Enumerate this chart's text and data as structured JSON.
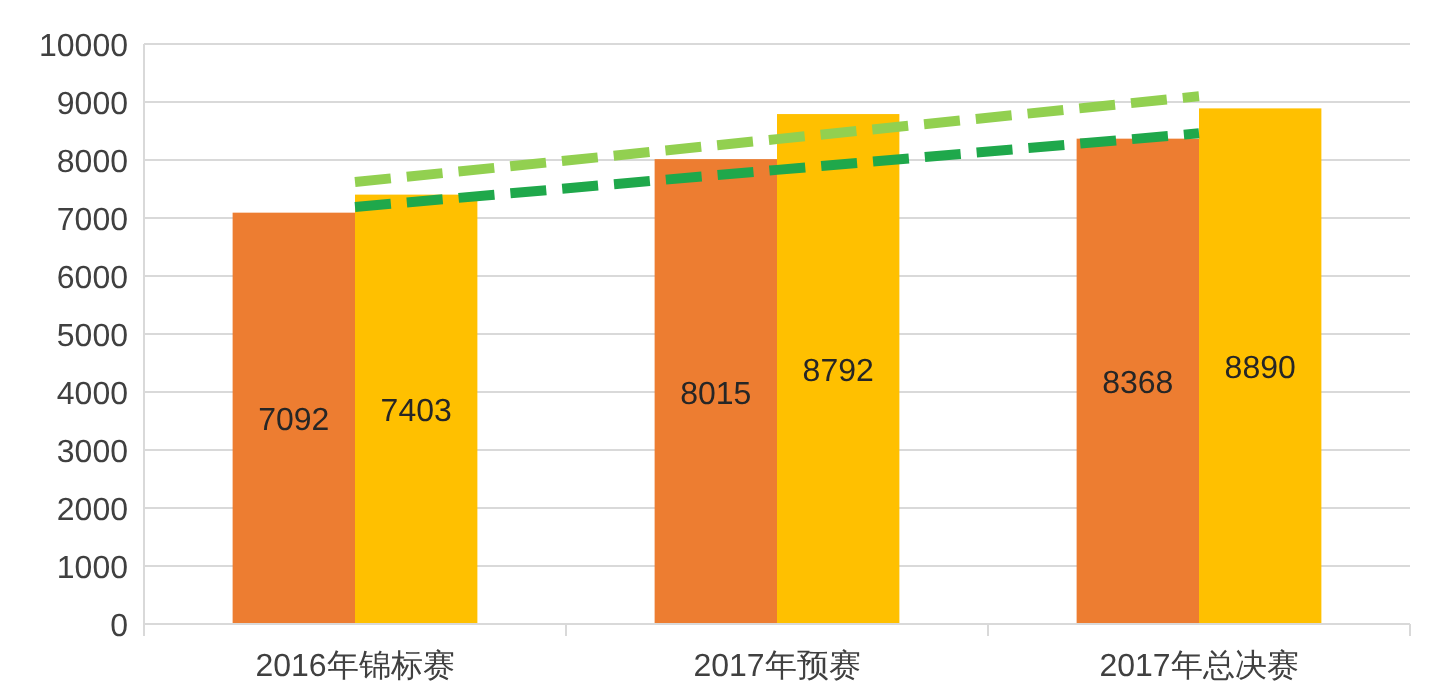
{
  "chart_data": {
    "type": "bar",
    "categories": [
      "2016年锦标赛",
      "2017年预赛",
      "2017年总决赛"
    ],
    "series": [
      {
        "color": "#ed7d31",
        "values": [
          7092,
          8015,
          8368
        ],
        "value_labels": [
          "7092",
          "8015",
          "8368"
        ]
      },
      {
        "color": "#ffc000",
        "values": [
          7403,
          8792,
          8890
        ],
        "value_labels": [
          "7403",
          "8792",
          "8890"
        ]
      },
      {
        "type": "line",
        "color": "#92d050",
        "line_style": "dashed",
        "values": [
          7620,
          8360,
          9100
        ]
      },
      {
        "type": "line",
        "color": "#1fa84b",
        "line_style": "dashed",
        "values": [
          7190,
          7830,
          8460
        ]
      }
    ],
    "ylim": [
      0,
      10000
    ],
    "yticks": [
      0,
      1000,
      2000,
      3000,
      4000,
      5000,
      6000,
      7000,
      8000,
      9000,
      10000
    ],
    "grid": "y"
  }
}
